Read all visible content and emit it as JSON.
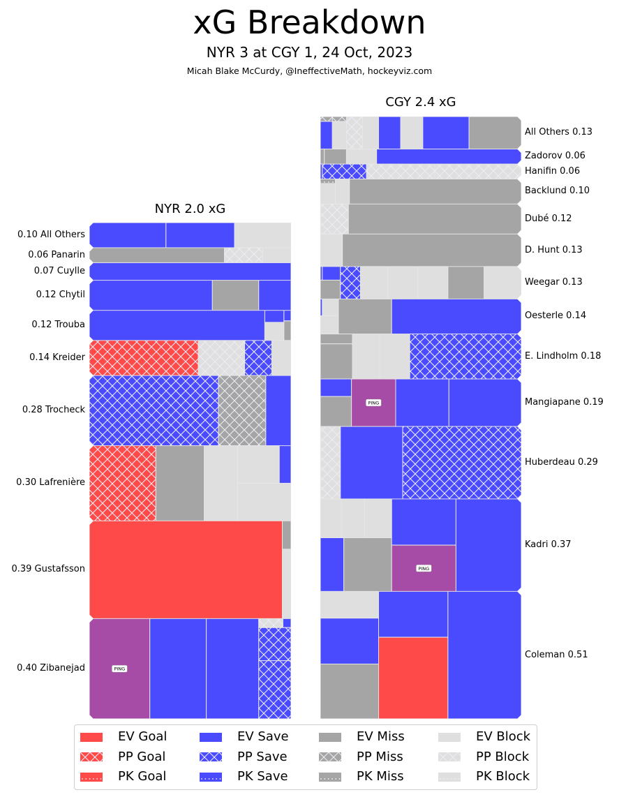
{
  "header": {
    "title": "xG Breakdown",
    "subtitle": "NYR 3 at CGY 1, 24 Oct, 2023",
    "credit": "Micah Blake McCurdy, @IneffectiveMath, hockeyviz.com"
  },
  "colors": {
    "goal": "#ff4a4a",
    "save": "#4a4aff",
    "miss": "#a5a5a5",
    "block": "#dfdfdf",
    "post": "#a64ca6",
    "hatch": "#e8e8f0",
    "divider": "#e6e6e6"
  },
  "ping_label": "PING",
  "chart_data": {
    "type": "treemap",
    "title": "xG Breakdown",
    "teams": [
      {
        "id": "nyr",
        "title": "NYR 2.0 xG",
        "team": "NYR",
        "total_xg": 2.0,
        "label_side": "left",
        "players": [
          {
            "name": "All Others",
            "xg": 0.1,
            "label": "0.10 All Others"
          },
          {
            "name": "Panarin",
            "xg": 0.06,
            "label": "0.06 Panarin"
          },
          {
            "name": "Cuylle",
            "xg": 0.07,
            "label": "0.07 Cuylle"
          },
          {
            "name": "Chytil",
            "xg": 0.12,
            "label": "0.12 Chytil"
          },
          {
            "name": "Trouba",
            "xg": 0.12,
            "label": "0.12 Trouba"
          },
          {
            "name": "Kreider",
            "xg": 0.14,
            "label": "0.14 Kreider"
          },
          {
            "name": "Trocheck",
            "xg": 0.28,
            "label": "0.28 Trocheck"
          },
          {
            "name": "Lafrenière",
            "xg": 0.3,
            "label": "0.30 Lafrenière"
          },
          {
            "name": "Gustafsson",
            "xg": 0.39,
            "label": "0.39 Gustafsson"
          },
          {
            "name": "Zibanejad",
            "xg": 0.4,
            "label": "0.40 Zibanejad"
          }
        ]
      },
      {
        "id": "cgy",
        "title": "CGY 2.4 xG",
        "team": "CGY",
        "total_xg": 2.4,
        "label_side": "right",
        "players": [
          {
            "name": "All Others",
            "xg": 0.13,
            "label": "All Others 0.13"
          },
          {
            "name": "Zadorov",
            "xg": 0.06,
            "label": "Zadorov 0.06"
          },
          {
            "name": "Hanifin",
            "xg": 0.06,
            "label": "Hanifin 0.06"
          },
          {
            "name": "Backlund",
            "xg": 0.1,
            "label": "Backlund 0.10"
          },
          {
            "name": "Dubé",
            "xg": 0.12,
            "label": "Dubé 0.12"
          },
          {
            "name": "D. Hunt",
            "xg": 0.13,
            "label": "D. Hunt 0.13"
          },
          {
            "name": "Weegar",
            "xg": 0.13,
            "label": "Weegar 0.13"
          },
          {
            "name": "Oesterle",
            "xg": 0.14,
            "label": "Oesterle 0.14"
          },
          {
            "name": "E. Lindholm",
            "xg": 0.18,
            "label": "E. Lindholm 0.18"
          },
          {
            "name": "Mangiapane",
            "xg": 0.19,
            "label": "Mangiapane 0.19"
          },
          {
            "name": "Huberdeau",
            "xg": 0.29,
            "label": "Huberdeau 0.29"
          },
          {
            "name": "Kadri",
            "xg": 0.37,
            "label": "Kadri 0.37"
          },
          {
            "name": "Coleman",
            "xg": 0.51,
            "label": "Coleman 0.51"
          }
        ]
      }
    ],
    "legend": {
      "placement": "bottom-center",
      "columns": 4,
      "entries": [
        {
          "label": "EV Goal",
          "kind": "goal",
          "strength": "EV"
        },
        {
          "label": "PP Goal",
          "kind": "goal",
          "strength": "PP"
        },
        {
          "label": "PK Goal",
          "kind": "goal",
          "strength": "PK"
        },
        {
          "label": "EV Save",
          "kind": "save",
          "strength": "EV"
        },
        {
          "label": "PP Save",
          "kind": "save",
          "strength": "PP"
        },
        {
          "label": "PK Save",
          "kind": "save",
          "strength": "PK"
        },
        {
          "label": "EV Miss",
          "kind": "miss",
          "strength": "EV"
        },
        {
          "label": "PP Miss",
          "kind": "miss",
          "strength": "PP"
        },
        {
          "label": "PK Miss",
          "kind": "miss",
          "strength": "PK"
        },
        {
          "label": "EV Block",
          "kind": "block",
          "strength": "EV"
        },
        {
          "label": "PP Block",
          "kind": "block",
          "strength": "PP"
        },
        {
          "label": "PK Block",
          "kind": "block",
          "strength": "PK"
        }
      ]
    }
  }
}
